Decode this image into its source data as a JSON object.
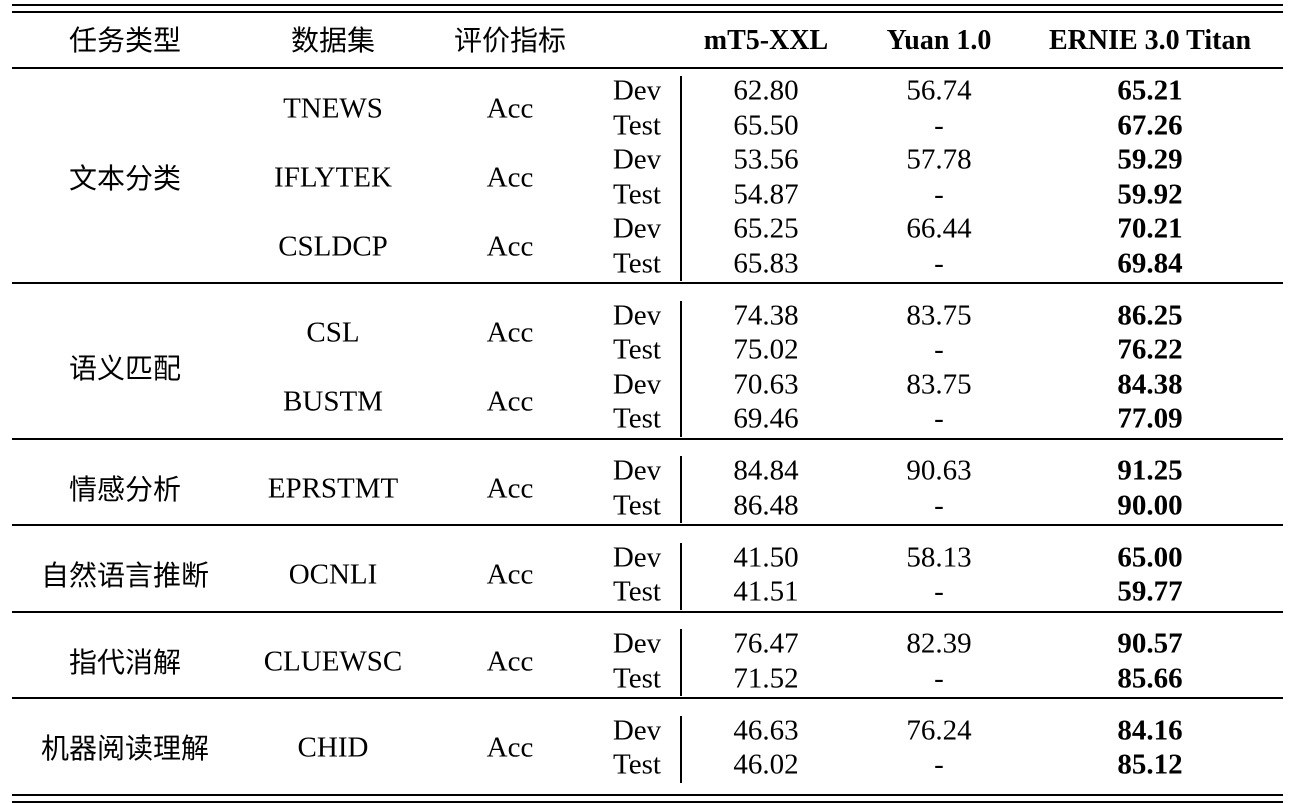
{
  "headers": {
    "task_type": "任务类型",
    "dataset": "数据集",
    "metric": "评价指标",
    "models": [
      "mT5-XXL",
      "Yuan 1.0",
      "ERNIE 3.0 Titan"
    ]
  },
  "groups": [
    {
      "task": "文本分类",
      "datasets": [
        {
          "name": "TNEWS",
          "metric": "Acc",
          "rows": [
            {
              "split": "Dev",
              "values": [
                "62.80",
                "56.74",
                "65.21"
              ]
            },
            {
              "split": "Test",
              "values": [
                "65.50",
                "-",
                "67.26"
              ]
            }
          ]
        },
        {
          "name": "IFLYTEK",
          "metric": "Acc",
          "rows": [
            {
              "split": "Dev",
              "values": [
                "53.56",
                "57.78",
                "59.29"
              ]
            },
            {
              "split": "Test",
              "values": [
                "54.87",
                "-",
                "59.92"
              ]
            }
          ]
        },
        {
          "name": "CSLDCP",
          "metric": "Acc",
          "rows": [
            {
              "split": "Dev",
              "values": [
                "65.25",
                "66.44",
                "70.21"
              ]
            },
            {
              "split": "Test",
              "values": [
                "65.83",
                "-",
                "69.84"
              ]
            }
          ]
        }
      ]
    },
    {
      "task": "语义匹配",
      "datasets": [
        {
          "name": "CSL",
          "metric": "Acc",
          "rows": [
            {
              "split": "Dev",
              "values": [
                "74.38",
                "83.75",
                "86.25"
              ]
            },
            {
              "split": "Test",
              "values": [
                "75.02",
                "-",
                "76.22"
              ]
            }
          ]
        },
        {
          "name": "BUSTM",
          "metric": "Acc",
          "rows": [
            {
              "split": "Dev",
              "values": [
                "70.63",
                "83.75",
                "84.38"
              ]
            },
            {
              "split": "Test",
              "values": [
                "69.46",
                "-",
                "77.09"
              ]
            }
          ]
        }
      ]
    },
    {
      "task": "情感分析",
      "datasets": [
        {
          "name": "EPRSTMT",
          "metric": "Acc",
          "rows": [
            {
              "split": "Dev",
              "values": [
                "84.84",
                "90.63",
                "91.25"
              ]
            },
            {
              "split": "Test",
              "values": [
                "86.48",
                "-",
                "90.00"
              ]
            }
          ]
        }
      ]
    },
    {
      "task": "自然语言推断",
      "datasets": [
        {
          "name": "OCNLI",
          "metric": "Acc",
          "rows": [
            {
              "split": "Dev",
              "values": [
                "41.50",
                "58.13",
                "65.00"
              ]
            },
            {
              "split": "Test",
              "values": [
                "41.51",
                "-",
                "59.77"
              ]
            }
          ]
        }
      ]
    },
    {
      "task": "指代消解",
      "datasets": [
        {
          "name": "CLUEWSC",
          "metric": "Acc",
          "rows": [
            {
              "split": "Dev",
              "values": [
                "76.47",
                "82.39",
                "90.57"
              ]
            },
            {
              "split": "Test",
              "values": [
                "71.52",
                "-",
                "85.66"
              ]
            }
          ]
        }
      ]
    },
    {
      "task": "机器阅读理解",
      "datasets": [
        {
          "name": "CHID",
          "metric": "Acc",
          "rows": [
            {
              "split": "Dev",
              "values": [
                "46.63",
                "76.24",
                "84.16"
              ]
            },
            {
              "split": "Test",
              "values": [
                "46.02",
                "-",
                "85.12"
              ]
            }
          ]
        }
      ]
    }
  ]
}
